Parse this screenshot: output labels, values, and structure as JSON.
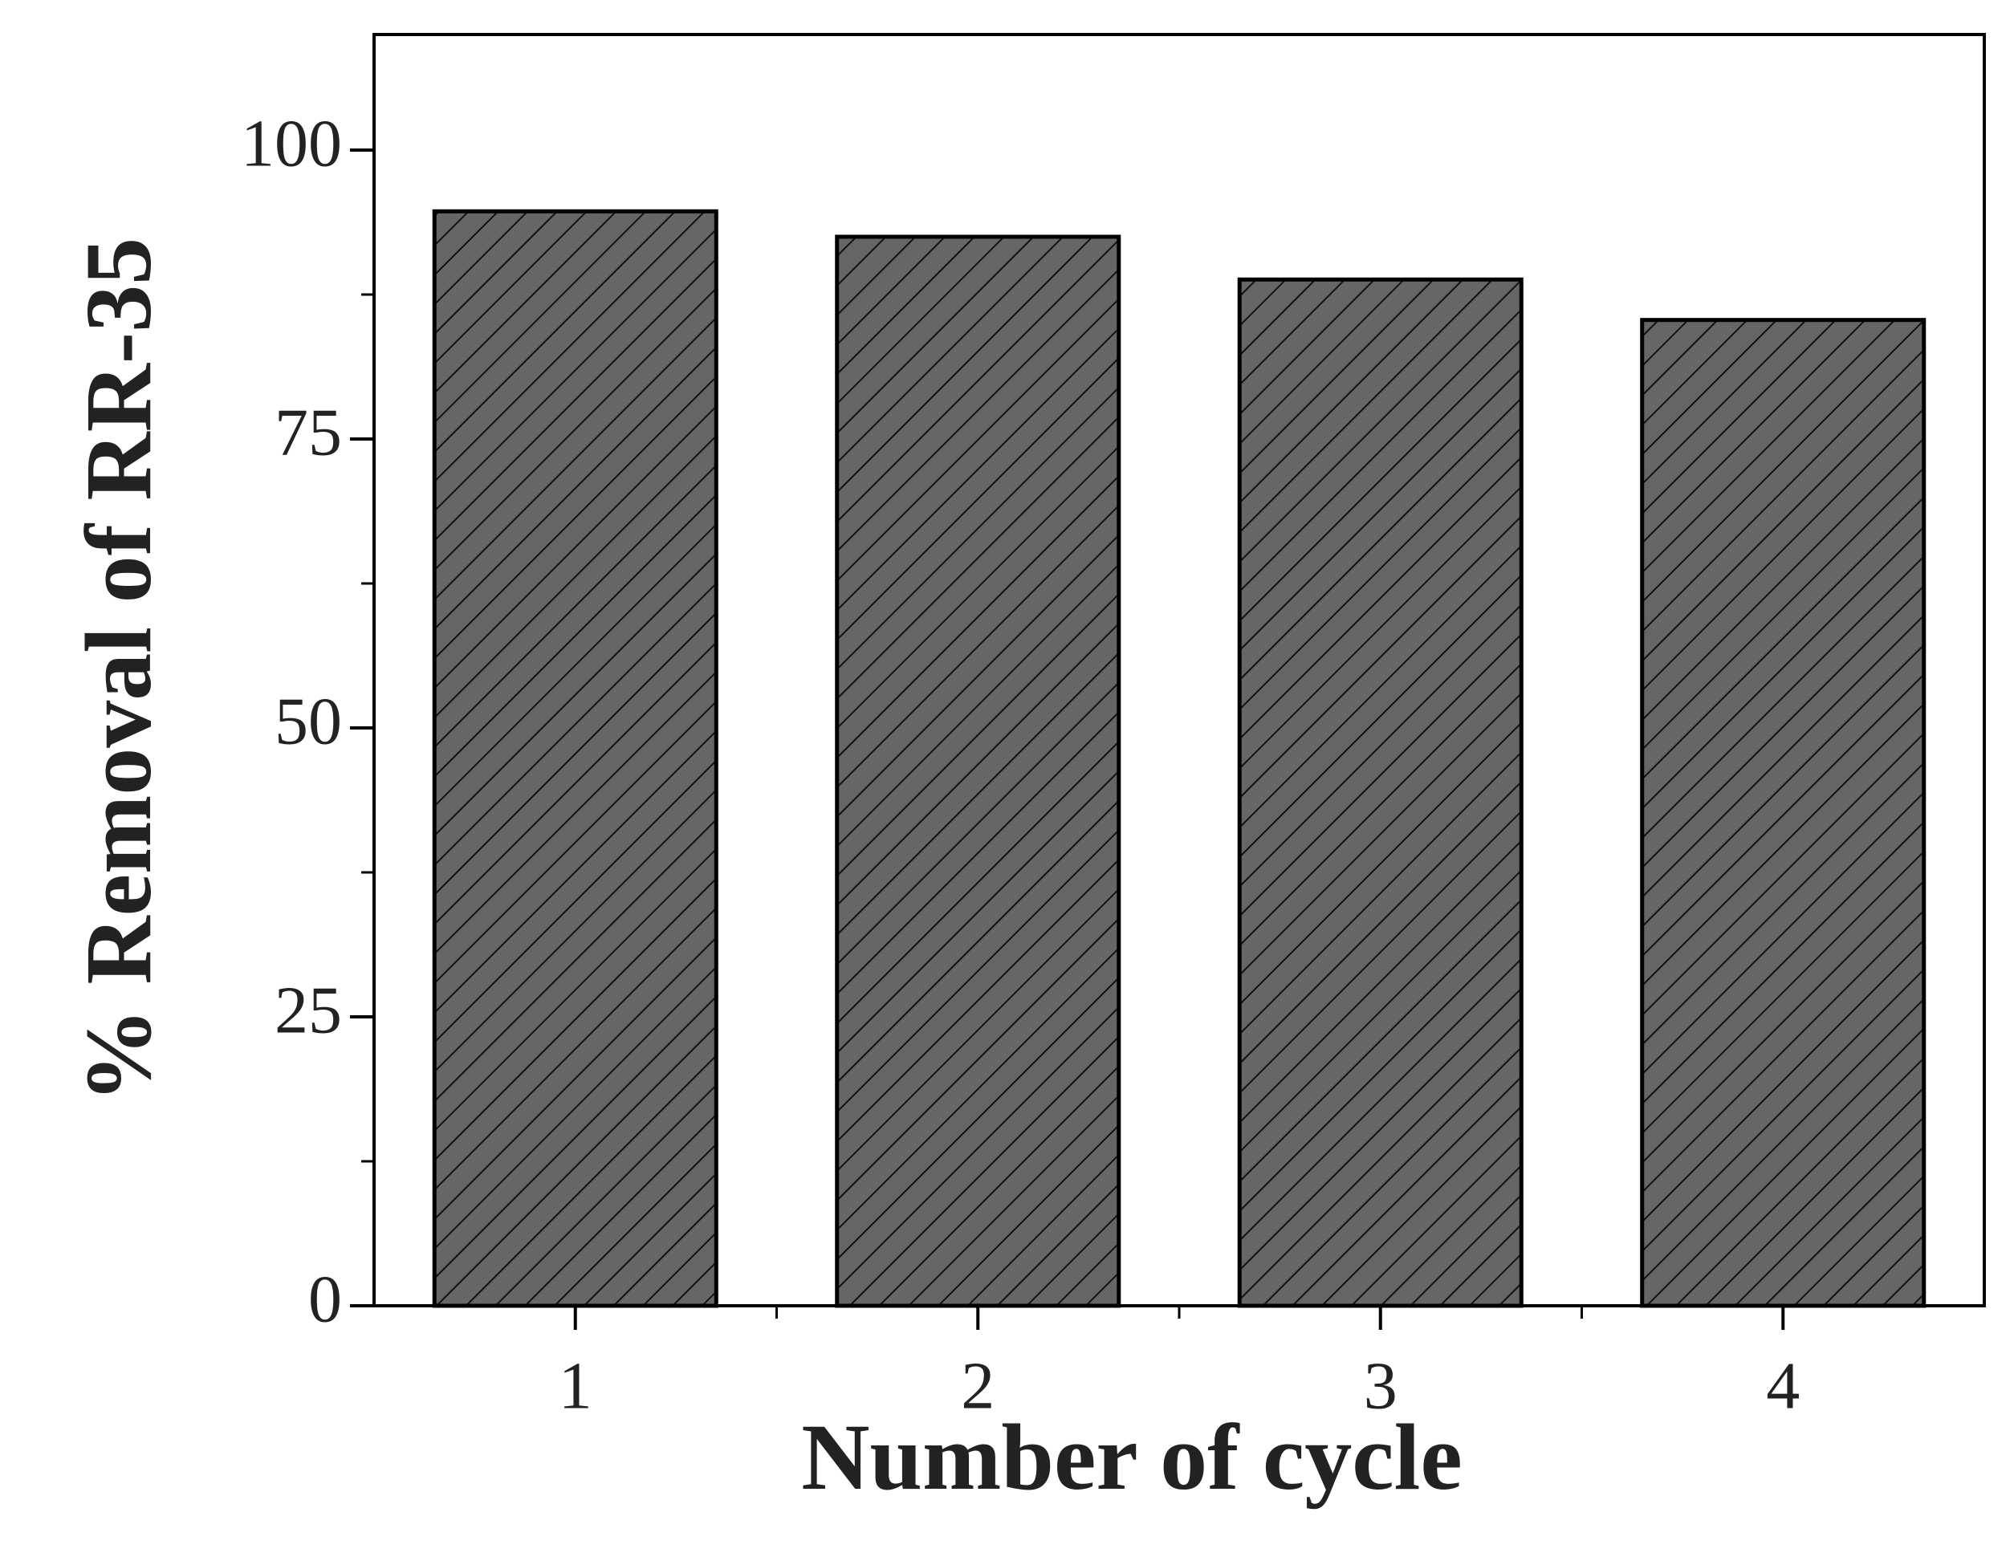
{
  "chart_data": {
    "type": "bar",
    "x_label": "Number of cycle",
    "y_label": "% Removal of RR-35",
    "categories": [
      "1",
      "2",
      "3",
      "4"
    ],
    "values": [
      94.7,
      92.5,
      88.8,
      85.3
    ],
    "color": "#666666",
    "ylim": [
      0,
      110
    ],
    "yticks": [
      0,
      25,
      50,
      75,
      100
    ],
    "yminorticks": [
      12.5,
      37.5,
      62.5,
      87.5
    ],
    "grid": false
  }
}
